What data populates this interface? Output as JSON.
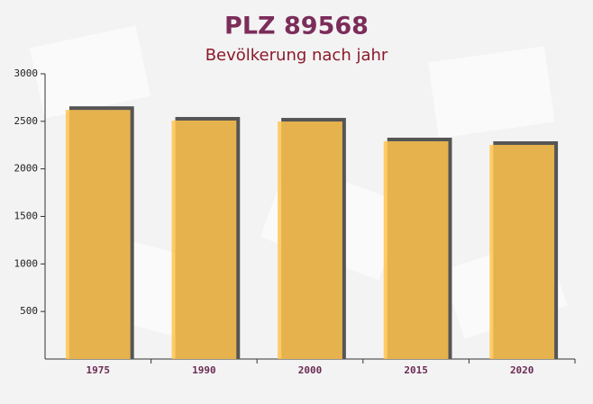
{
  "chart_data": {
    "type": "bar",
    "title": "PLZ 89568",
    "subtitle": "Bevölkerung nach jahr",
    "categories": [
      "1975",
      "1990",
      "2000",
      "2015",
      "2020"
    ],
    "values": [
      2620,
      2508,
      2498,
      2290,
      2252
    ],
    "color": "#ffc34d",
    "ylim": [
      0,
      3000
    ],
    "yticks": [
      500,
      1000,
      1500,
      2000,
      2500,
      3000
    ]
  }
}
